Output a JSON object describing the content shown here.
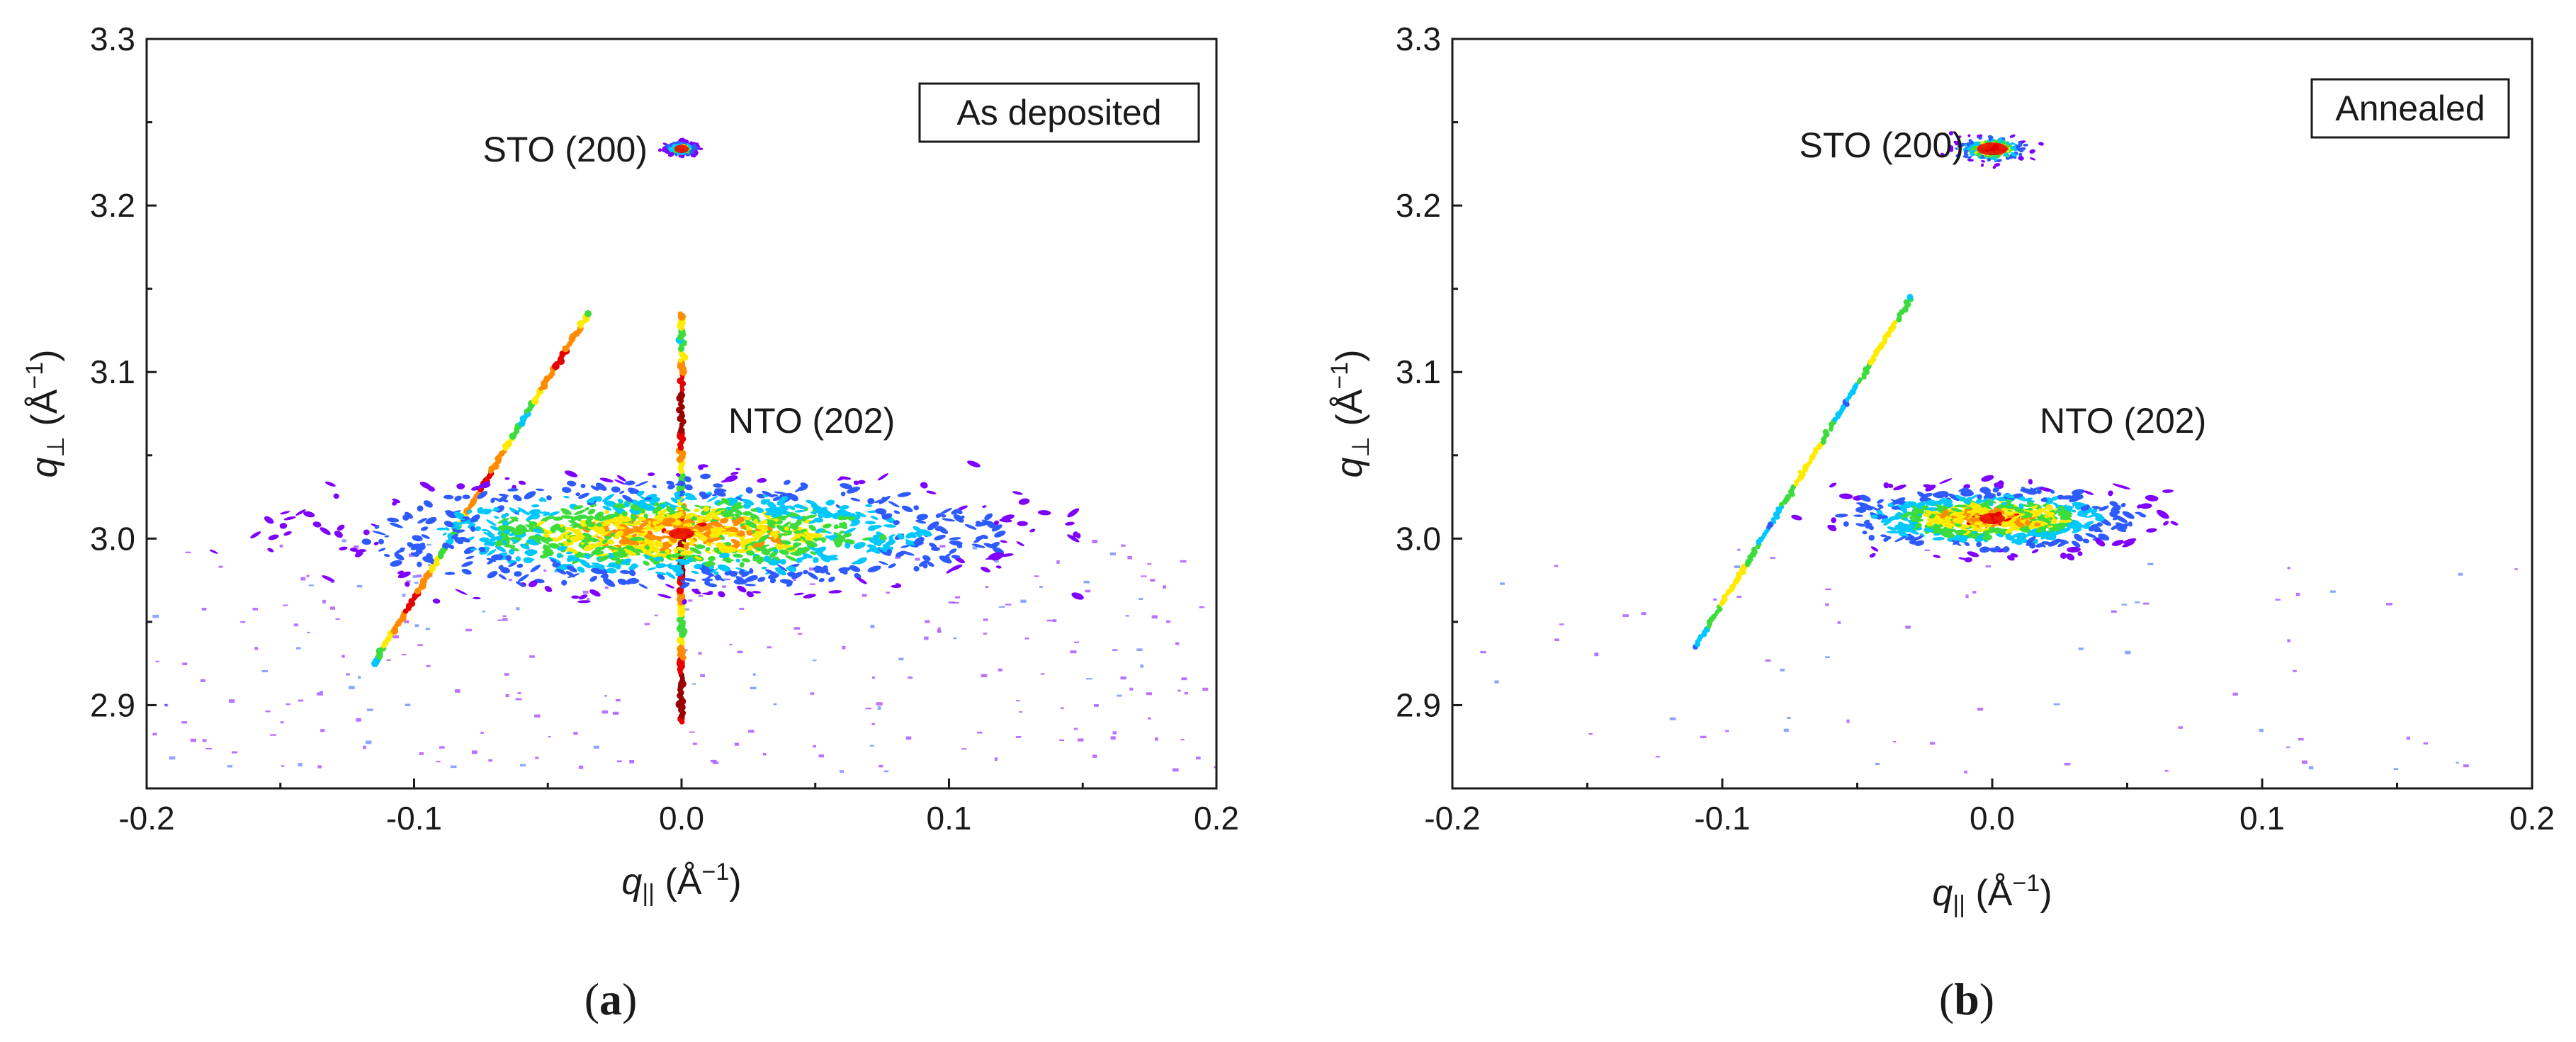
{
  "chart_data": [
    {
      "type": "heatmap",
      "panel_label": "a",
      "caption_open": "(",
      "caption_close": ")",
      "box_label": "As deposited",
      "xlabel": "q",
      "xlabel_sub": "||",
      "xlabel_unit": " (Å",
      "xlabel_exp": "−1",
      "xlabel_close": ")",
      "ylabel": "q",
      "ylabel_sub": "⊥",
      "ylabel_unit": " (Å",
      "ylabel_exp": "−1",
      "ylabel_close": ")",
      "xlim": [
        -0.2,
        0.2
      ],
      "ylim": [
        2.85,
        3.3
      ],
      "xticks": [
        -0.2,
        -0.1,
        0.0,
        0.1,
        0.2
      ],
      "xtick_labels": [
        "-0.2",
        "-0.1",
        "0.0",
        "0.1",
        "0.2"
      ],
      "yticks": [
        2.9,
        3.0,
        3.1,
        3.2,
        3.3
      ],
      "ytick_labels": [
        "2.9",
        "3.0",
        "3.1",
        "3.2",
        "3.3"
      ],
      "colormap": [
        "#ffffff",
        "#7f00ff",
        "#2e5bff",
        "#00c8ff",
        "#3cdc3c",
        "#ffeb00",
        "#ff8c00",
        "#e60000",
        "#9a0000"
      ],
      "peaks": [
        {
          "name": "STO (200)",
          "qx": 0.0,
          "qz": 3.234,
          "fwhm_qx": 0.006,
          "fwhm_qz": 0.004,
          "intensity": 1.0
        },
        {
          "name": "NTO (202)",
          "qx": 0.0,
          "qz": 3.003,
          "fwhm_qx": 0.13,
          "fwhm_qz": 0.035,
          "intensity": 0.85
        }
      ],
      "streaks": [
        {
          "from": [
            -0.115,
            2.925
          ],
          "to": [
            -0.035,
            3.135
          ],
          "intensity": 0.8
        },
        {
          "from": [
            0.0,
            2.89
          ],
          "to": [
            0.0,
            3.135
          ],
          "intensity": 1.0
        }
      ],
      "annotations": [
        {
          "text": "STO (200)",
          "qx": -0.04,
          "qz": 3.236
        },
        {
          "text": "NTO (202)",
          "qx": 0.056,
          "qz": 3.074
        }
      ]
    },
    {
      "type": "heatmap",
      "panel_label": "b",
      "caption_open": "(",
      "caption_close": ")",
      "box_label": "Annealed",
      "xlabel": "q",
      "xlabel_sub": "||",
      "xlabel_unit": " (Å",
      "xlabel_exp": "−1",
      "xlabel_close": ")",
      "ylabel": "q",
      "ylabel_sub": "⊥",
      "ylabel_unit": " (Å",
      "ylabel_exp": "−1",
      "ylabel_close": ")",
      "xlim": [
        -0.2,
        0.2
      ],
      "ylim": [
        2.85,
        3.3
      ],
      "xticks": [
        -0.2,
        -0.1,
        0.0,
        0.1,
        0.2
      ],
      "xtick_labels": [
        "-0.2",
        "-0.1",
        "0.0",
        "0.1",
        "0.2"
      ],
      "yticks": [
        2.9,
        3.0,
        3.1,
        3.2,
        3.3
      ],
      "ytick_labels": [
        "2.9",
        "3.0",
        "3.1",
        "3.2",
        "3.3"
      ],
      "colormap": [
        "#ffffff",
        "#7f00ff",
        "#2e5bff",
        "#00c8ff",
        "#3cdc3c",
        "#ffeb00",
        "#ff8c00",
        "#e60000",
        "#9a0000"
      ],
      "peaks": [
        {
          "name": "STO (200)",
          "qx": 0.0,
          "qz": 3.234,
          "fwhm_qx": 0.014,
          "fwhm_qz": 0.008,
          "intensity": 1.0
        },
        {
          "name": "NTO (202)",
          "qx": 0.0,
          "qz": 3.012,
          "fwhm_qx": 0.06,
          "fwhm_qz": 0.02,
          "intensity": 0.9
        }
      ],
      "streaks": [
        {
          "from": [
            -0.11,
            2.935
          ],
          "to": [
            -0.03,
            3.145
          ],
          "intensity": 0.55
        }
      ],
      "annotations": [
        {
          "text": "STO (200)",
          "qx": -0.052,
          "qz": 3.236
        },
        {
          "text": "NTO (202)",
          "qx": 0.052,
          "qz": 3.072
        }
      ]
    }
  ]
}
